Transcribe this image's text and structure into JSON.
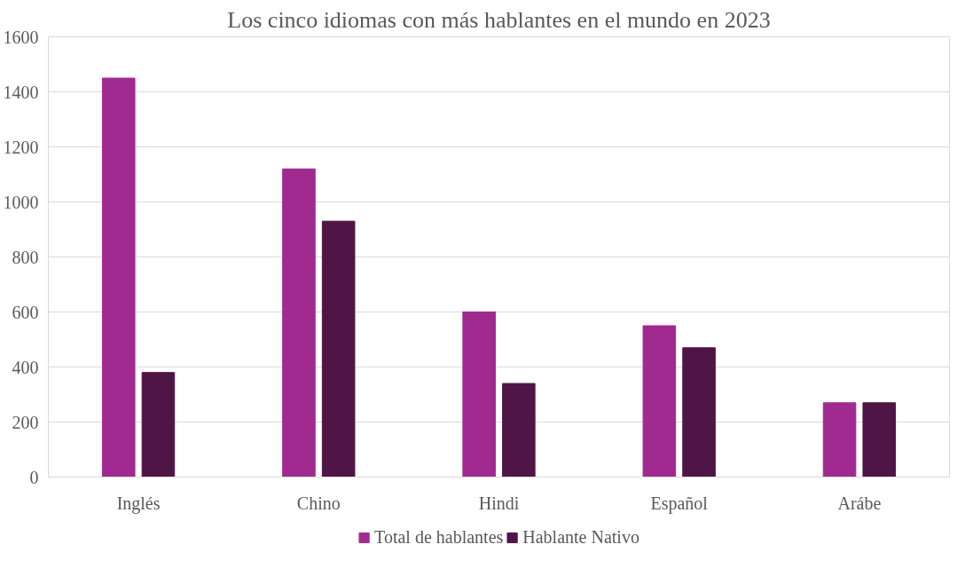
{
  "chart_data": {
    "type": "bar",
    "title": "Los cinco idiomas con más hablantes en el mundo en 2023",
    "categories": [
      "Inglés",
      "Chino",
      "Hindi",
      "Español",
      "Arábe"
    ],
    "series": [
      {
        "name": "Total de hablantes",
        "color": "#a02a90",
        "values": [
          1450,
          1120,
          600,
          550,
          270
        ]
      },
      {
        "name": "Hablante Nativo",
        "color": "#501547",
        "values": [
          380,
          930,
          340,
          470,
          270
        ]
      }
    ],
    "ylim": [
      0,
      1600
    ],
    "yticks": [
      0,
      200,
      400,
      600,
      800,
      1000,
      1200,
      1400,
      1600
    ],
    "grid": "y",
    "legend": "bottom"
  }
}
